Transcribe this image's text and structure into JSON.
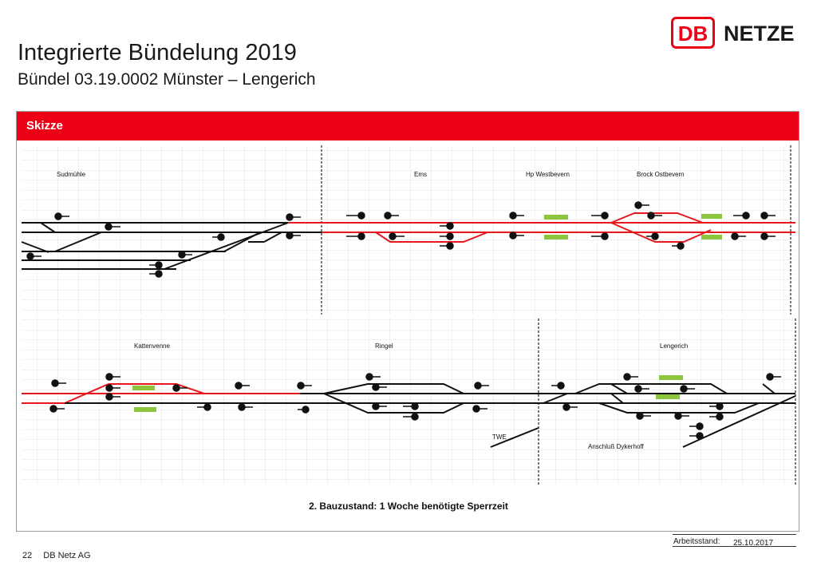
{
  "header": {
    "title": "Integrierte Bündelung 2019",
    "subtitle": "Bündel 03.19.0002 Münster – Lengerich"
  },
  "logo": {
    "mark": "DB",
    "text": "NETZE"
  },
  "panel": {
    "heading": "Skizze"
  },
  "sketch": {
    "stations": [
      "Sudmühle",
      "Ems",
      "Hp Westbevern",
      "Brock Ostbevern",
      "Kattenvenne",
      "Ringel",
      "Lengerich"
    ],
    "labels": [
      "TWE",
      "Anschluß Dykerhoff"
    ],
    "caption": "2. Bauzustand: 1 Woche benötigte Sperrzeit"
  },
  "footer": {
    "page_number": "22",
    "company": "DB Netz AG",
    "stand_label": "Arbeitsstand:",
    "stand_date": "25.10.2017"
  },
  "colors": {
    "brand_red": "#ec0016",
    "closure_red": "#e8171d",
    "marker_green": "#8cc63f"
  }
}
